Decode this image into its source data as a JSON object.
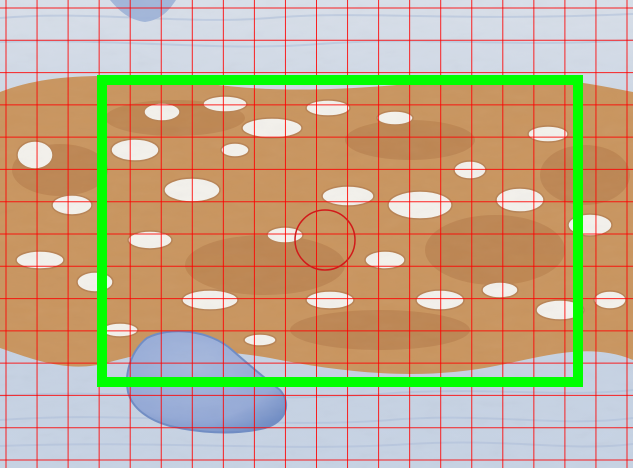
{
  "image": {
    "subject": "tissue-section",
    "colors": {
      "background_stain": "#c7d3e4",
      "tissue_stain": "#c9955f",
      "tissue_dark": "#a86d3d",
      "space": "#f3f1ec",
      "cartilage_fill": "#9fb3d8",
      "cartilage_edge": "#6f8cc4",
      "grid_line": "#ff0000",
      "selection_box": "#00ff00",
      "target_circle": "#d11a1a"
    },
    "grid": {
      "columns": 21,
      "rows": 15,
      "visible": true
    },
    "overlays": [
      "grid-lines",
      "selection-rectangle",
      "target-circle"
    ]
  }
}
